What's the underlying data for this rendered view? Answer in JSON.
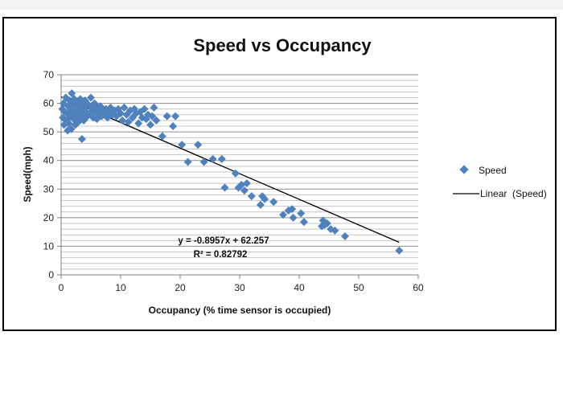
{
  "chart_data": {
    "type": "scatter",
    "title": "Speed vs Occupancy",
    "xlabel": "Occupancy (% time sensor is occupied)",
    "ylabel": "Speed(mph)",
    "xlim": [
      0,
      60
    ],
    "ylim": [
      0,
      70
    ],
    "xticks": [
      "0",
      "10",
      "20",
      "30",
      "40",
      "50",
      "60"
    ],
    "yticks": [
      "0",
      "10",
      "20",
      "30",
      "40",
      "50",
      "60",
      "70"
    ],
    "horizontal_grid": true,
    "legend_position": "right",
    "marker_color": "#4F81BD",
    "trendline_color": "#000000",
    "series": [
      {
        "name": "Speed",
        "points": [
          [
            0.2,
            58
          ],
          [
            0.3,
            55
          ],
          [
            0.4,
            60
          ],
          [
            0.5,
            52.5
          ],
          [
            0.6,
            57
          ],
          [
            0.8,
            62
          ],
          [
            0.9,
            54
          ],
          [
            1.0,
            56.5
          ],
          [
            1.1,
            50.5
          ],
          [
            1.2,
            59
          ],
          [
            1.3,
            53
          ],
          [
            1.4,
            61
          ],
          [
            1.5,
            55.5
          ],
          [
            1.6,
            57.5
          ],
          [
            1.7,
            51
          ],
          [
            1.8,
            63.5
          ],
          [
            1.9,
            56
          ],
          [
            2.0,
            59.5
          ],
          [
            2.1,
            54.5
          ],
          [
            2.2,
            61.5
          ],
          [
            2.3,
            57
          ],
          [
            2.4,
            52.5
          ],
          [
            2.5,
            58.5
          ],
          [
            2.6,
            55
          ],
          [
            2.7,
            60.5
          ],
          [
            2.8,
            56.5
          ],
          [
            2.9,
            53.5
          ],
          [
            3.0,
            59
          ],
          [
            3.1,
            57.5
          ],
          [
            3.2,
            61.5
          ],
          [
            3.3,
            55
          ],
          [
            3.4,
            58
          ],
          [
            3.5,
            47.5
          ],
          [
            3.6,
            60
          ],
          [
            3.7,
            56
          ],
          [
            3.8,
            54
          ],
          [
            3.9,
            58.5
          ],
          [
            4.0,
            61
          ],
          [
            4.2,
            57
          ],
          [
            4.4,
            55.5
          ],
          [
            4.6,
            59.5
          ],
          [
            4.8,
            56.5
          ],
          [
            5.0,
            62
          ],
          [
            5.2,
            58
          ],
          [
            5.4,
            55
          ],
          [
            5.6,
            60
          ],
          [
            5.8,
            57
          ],
          [
            6.0,
            54.5
          ],
          [
            6.2,
            58.5
          ],
          [
            6.4,
            56
          ],
          [
            6.6,
            59
          ],
          [
            6.8,
            55.5
          ],
          [
            7.0,
            57.5
          ],
          [
            7.2,
            56
          ],
          [
            7.5,
            58
          ],
          [
            7.8,
            55
          ],
          [
            8.0,
            57
          ],
          [
            8.3,
            58.5
          ],
          [
            8.6,
            56
          ],
          [
            9.0,
            57.5
          ],
          [
            9.3,
            55.5
          ],
          [
            9.6,
            58
          ],
          [
            10.0,
            56.5
          ],
          [
            10.3,
            54
          ],
          [
            10.6,
            58.5
          ],
          [
            11.0,
            56
          ],
          [
            11.3,
            53.5
          ],
          [
            11.6,
            57.5
          ],
          [
            12.0,
            55
          ],
          [
            12.3,
            58
          ],
          [
            12.6,
            56.5
          ],
          [
            13.0,
            53
          ],
          [
            13.3,
            57
          ],
          [
            13.6,
            55
          ],
          [
            14.0,
            58
          ],
          [
            14.3,
            54.5
          ],
          [
            14.6,
            56
          ],
          [
            15.0,
            52.5
          ],
          [
            15.3,
            55.5
          ],
          [
            15.6,
            58.5
          ],
          [
            16.0,
            54
          ],
          [
            17.0,
            48.5
          ],
          [
            17.8,
            55.5
          ],
          [
            18.8,
            52
          ],
          [
            19.2,
            55.5
          ],
          [
            20.3,
            45.5
          ],
          [
            21.3,
            39.5
          ],
          [
            23.0,
            45.5
          ],
          [
            24.0,
            39.5
          ],
          [
            25.5,
            40.5
          ],
          [
            27.0,
            40.5
          ],
          [
            27.5,
            30.5
          ],
          [
            29.3,
            35.5
          ],
          [
            29.8,
            30.5
          ],
          [
            30.3,
            31.5
          ],
          [
            30.8,
            29.5
          ],
          [
            31.2,
            32
          ],
          [
            32.0,
            27.5
          ],
          [
            33.5,
            24.5
          ],
          [
            33.8,
            27.5
          ],
          [
            34.2,
            26.5
          ],
          [
            35.7,
            25.5
          ],
          [
            37.3,
            21
          ],
          [
            38.2,
            22.5
          ],
          [
            38.8,
            23
          ],
          [
            39.0,
            20
          ],
          [
            40.3,
            21.5
          ],
          [
            40.8,
            18.5
          ],
          [
            43.8,
            17
          ],
          [
            44.0,
            19
          ],
          [
            44.3,
            17.5
          ],
          [
            44.7,
            18
          ],
          [
            45.3,
            16
          ],
          [
            46.0,
            15.5
          ],
          [
            47.7,
            13.5
          ],
          [
            56.8,
            8.5
          ]
        ]
      }
    ],
    "trendline": {
      "name": "Linear  (Speed)",
      "slope": -0.8957,
      "intercept": 62.257,
      "x_range": [
        0,
        56.8
      ],
      "equation": "y = -0.8957x + 62.257",
      "r_squared": "R² = 0.82792"
    }
  }
}
